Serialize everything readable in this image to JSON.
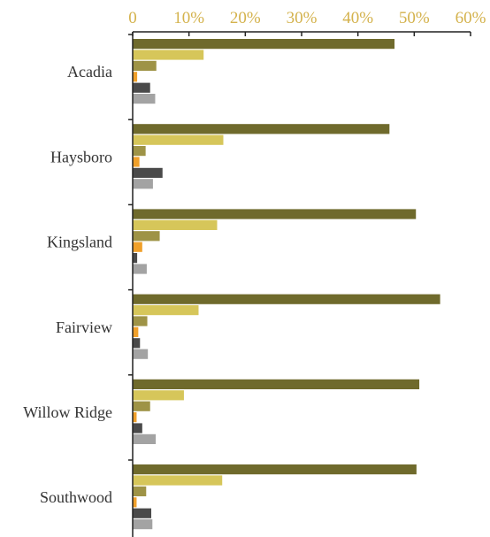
{
  "chart_data": {
    "type": "bar",
    "orientation": "horizontal",
    "categories": [
      "Acadia",
      "Haysboro",
      "Kingsland",
      "Fairview",
      "Willow Ridge",
      "Southwood"
    ],
    "x_ticks": [
      "0",
      "10%",
      "20%",
      "30%",
      "40%",
      "50%",
      "60%"
    ],
    "xlim": [
      0,
      60
    ],
    "x_axis_position": "top",
    "grid": false,
    "legend": "none",
    "series": [
      {
        "color": "#6f6a2c",
        "values": [
          46.5,
          45.6,
          50.3,
          54.6,
          50.9,
          50.4
        ]
      },
      {
        "color": "#d6c65a",
        "values": [
          12.6,
          16.1,
          15.0,
          11.7,
          9.1,
          15.9
        ]
      },
      {
        "color": "#9e9346",
        "values": [
          4.2,
          2.3,
          4.8,
          2.6,
          3.1,
          2.4
        ]
      },
      {
        "color": "#f0a02a",
        "values": [
          0.8,
          1.2,
          1.7,
          1.0,
          0.7,
          0.7
        ]
      },
      {
        "color": "#4a4a4a",
        "values": [
          3.1,
          5.3,
          0.8,
          1.3,
          1.7,
          3.3
        ]
      },
      {
        "color": "#a3a3a3",
        "values": [
          4.0,
          3.6,
          2.5,
          2.7,
          4.1,
          3.5
        ]
      }
    ],
    "colors": {
      "tick_text": "#d4b24c",
      "axis": "#222222",
      "category_text": "#333333"
    }
  }
}
